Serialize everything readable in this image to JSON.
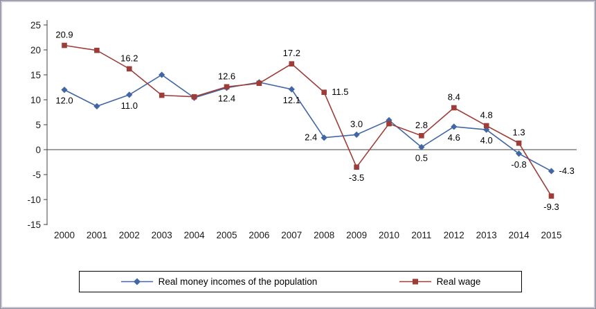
{
  "figure": {
    "background": "#ffffff",
    "frame_border_color": "#c9c2dc",
    "axis_color": "#404040",
    "text_color": "#1a1a1a"
  },
  "chart_data": {
    "type": "line",
    "title": "",
    "xlabel": "",
    "ylabel": "",
    "categories": [
      "2000",
      "2001",
      "2002",
      "2003",
      "2004",
      "2005",
      "2006",
      "2007",
      "2008",
      "2009",
      "2010",
      "2011",
      "2012",
      "2013",
      "2014",
      "2015"
    ],
    "ylim": [
      -15,
      25
    ],
    "yticks": [
      25,
      20,
      15,
      10,
      5,
      0,
      -5,
      -10,
      -15
    ],
    "grid": false,
    "legend_position": "bottom",
    "series": [
      {
        "name": "Real money incomes of the population",
        "color": "#4166a5",
        "marker": "diamond",
        "values": [
          12.0,
          8.7,
          11.0,
          15.0,
          10.4,
          12.4,
          13.5,
          12.1,
          2.4,
          3.0,
          5.9,
          0.5,
          4.6,
          4.0,
          -0.8,
          -4.3
        ],
        "labels": [
          "12.0",
          null,
          "11.0",
          null,
          null,
          "12.4",
          null,
          "12.1",
          "2.4",
          "3.0",
          null,
          "0.5",
          "4.6",
          "4.0",
          "-0.8",
          "-4.3"
        ],
        "label_pos": [
          "below",
          null,
          "below",
          null,
          null,
          "below",
          null,
          "below",
          "left",
          "above",
          null,
          "below",
          "below",
          "below",
          "below",
          "right"
        ]
      },
      {
        "name": "Real wage",
        "color": "#9e3c38",
        "marker": "square",
        "values": [
          20.9,
          19.9,
          16.2,
          10.9,
          10.6,
          12.6,
          13.3,
          17.2,
          11.5,
          -3.5,
          5.2,
          2.8,
          8.4,
          4.8,
          1.3,
          -9.3
        ],
        "labels": [
          "20.9",
          null,
          "16.2",
          null,
          null,
          "12.6",
          null,
          "17.2",
          "11.5",
          "-3.5",
          null,
          "2.8",
          "8.4",
          "4.8",
          "1.3",
          "-9.3"
        ],
        "label_pos": [
          "above",
          null,
          "above",
          null,
          null,
          "above",
          null,
          "above",
          "right",
          "below",
          null,
          "above",
          "above",
          "above",
          "above",
          "below"
        ]
      }
    ]
  }
}
